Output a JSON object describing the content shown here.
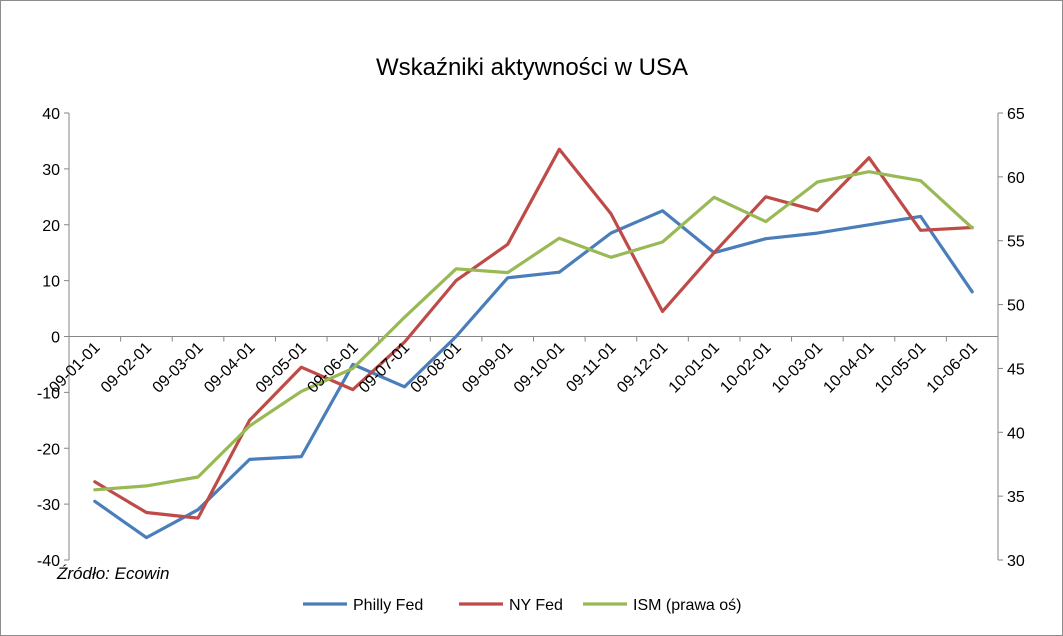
{
  "chart_data": {
    "type": "line",
    "title": "Wskaźniki aktywności w USA",
    "source_note": "Źródło: Ecowin",
    "categories": [
      "09-01-01",
      "09-02-01",
      "09-03-01",
      "09-04-01",
      "09-05-01",
      "09-06-01",
      "09-07-01",
      "09-08-01",
      "09-09-01",
      "09-10-01",
      "09-11-01",
      "09-12-01",
      "10-01-01",
      "10-02-01",
      "10-03-01",
      "10-04-01",
      "10-05-01",
      "10-06-01"
    ],
    "ylim_left": [
      -40,
      40
    ],
    "yticks_left": [
      "40",
      "30",
      "20",
      "10",
      "0",
      "-10",
      "-20",
      "-30",
      "-40"
    ],
    "ylim_right": [
      30,
      65
    ],
    "yticks_right": [
      "65",
      "60",
      "55",
      "50",
      "45",
      "40",
      "35",
      "30"
    ],
    "grid": false,
    "legend_position": "bottom",
    "series": [
      {
        "name": "Philly Fed",
        "axis": "left",
        "color": "#4a7ebb",
        "values": [
          -29.5,
          -36,
          -31,
          -22,
          -21.5,
          -5,
          -9,
          0,
          10.5,
          11.5,
          18.5,
          22.5,
          15,
          17.5,
          18.5,
          20,
          21.5,
          8
        ]
      },
      {
        "name": "NY Fed",
        "axis": "left",
        "color": "#be4b48",
        "values": [
          -26,
          -31.5,
          -32.5,
          -15,
          -5.5,
          -9.5,
          -1,
          10,
          16.5,
          33.5,
          22,
          4.5,
          15,
          25,
          22.5,
          32,
          19,
          19.5
        ]
      },
      {
        "name": "ISM (prawa oś)",
        "axis": "right",
        "color": "#98b954",
        "values": [
          35.5,
          35.8,
          36.5,
          40.5,
          43.2,
          45,
          49,
          52.8,
          52.5,
          55.2,
          53.7,
          54.9,
          58.4,
          56.5,
          59.6,
          60.4,
          59.7,
          56
        ]
      }
    ]
  }
}
